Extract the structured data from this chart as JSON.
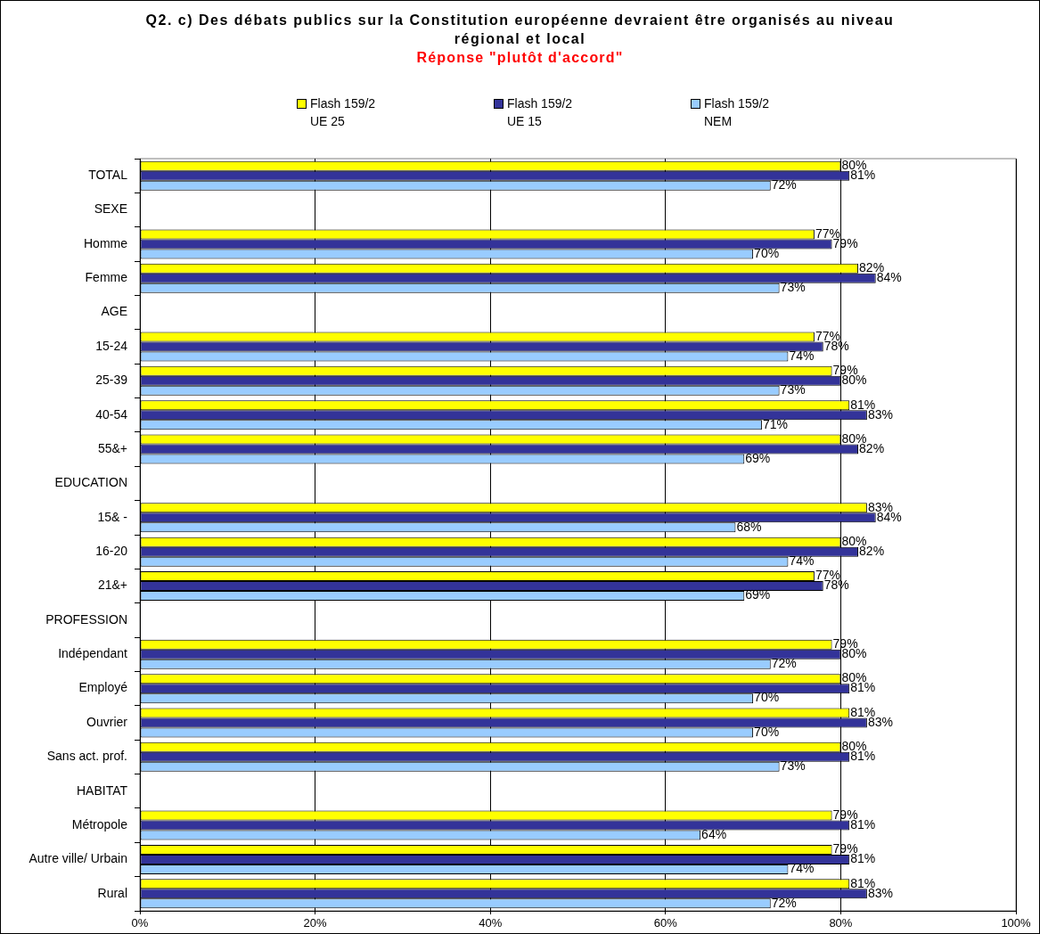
{
  "chart_data": {
    "type": "bar",
    "orientation": "horizontal",
    "title": "Q2. c) Des débats publics sur la Constitution européenne devraient être organisés au niveau régional et local",
    "subtitle": "Réponse \"plutôt d'accord\"",
    "categories": [
      "TOTAL",
      "SEXE",
      "Homme",
      "Femme",
      "AGE",
      "15-24",
      "25-39",
      "40-54",
      "55&+",
      "EDUCATION",
      "15& -",
      "16-20",
      "21&+",
      "PROFESSION",
      "Indépendant",
      "Employé",
      "Ouvrier",
      "Sans act. prof.",
      "HABITAT",
      "Métropole",
      "Autre ville/ Urbain",
      "Rural"
    ],
    "series": [
      {
        "name": "Flash 159/2 UE 25",
        "color": "#ffff00",
        "values": [
          80,
          null,
          77,
          82,
          null,
          77,
          79,
          81,
          80,
          null,
          83,
          80,
          77,
          null,
          79,
          80,
          81,
          80,
          null,
          79,
          79,
          81
        ],
        "value_labels": [
          "80%",
          null,
          "77%",
          "82%",
          null,
          "77%",
          "79%",
          "81%",
          "80%",
          null,
          "83%",
          "80%",
          "77%",
          null,
          "79%",
          "80%",
          "81%",
          "80%",
          null,
          "79%",
          "79%",
          "81%"
        ]
      },
      {
        "name": "Flash 159/2 UE 15",
        "color": "#333399",
        "values": [
          81,
          null,
          79,
          84,
          null,
          78,
          80,
          83,
          82,
          null,
          84,
          82,
          78,
          null,
          80,
          81,
          83,
          81,
          null,
          81,
          81,
          83
        ],
        "value_labels": [
          "81%",
          null,
          "79%",
          "84%",
          null,
          "78%",
          "80%",
          "83%",
          "82%",
          null,
          "84%",
          "82%",
          "78%",
          null,
          "80%",
          "81%",
          "83%",
          "81%",
          null,
          "81%",
          "81%",
          "83%"
        ]
      },
      {
        "name": "Flash 159/2 NEM",
        "color": "#99ccff",
        "values": [
          72,
          null,
          70,
          73,
          null,
          74,
          73,
          71,
          69,
          null,
          68,
          74,
          69,
          null,
          72,
          70,
          70,
          73,
          null,
          64,
          74,
          72
        ],
        "value_labels": [
          "72%",
          null,
          "70%",
          "73%",
          null,
          "74%",
          "73%",
          "71%",
          "69%",
          null,
          "68%",
          "74%",
          "69%",
          null,
          "72%",
          "70%",
          "70%",
          "73%",
          null,
          "64%",
          "74%",
          "72%"
        ]
      }
    ],
    "xlim": [
      0,
      100
    ],
    "xticks": [
      {
        "value": 0,
        "label": "0%"
      },
      {
        "value": 20,
        "label": "20%"
      },
      {
        "value": 40,
        "label": "40%"
      },
      {
        "value": 60,
        "label": "60%"
      },
      {
        "value": 80,
        "label": "80%"
      },
      {
        "value": 100,
        "label": "100%"
      }
    ],
    "grid": "x",
    "legend": "top"
  }
}
